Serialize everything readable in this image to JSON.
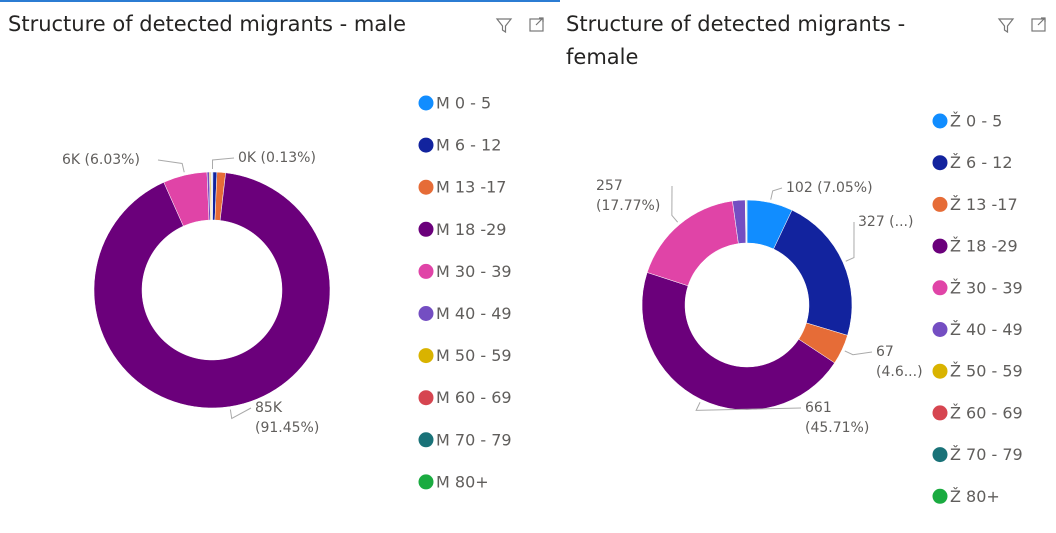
{
  "chart_data": [
    {
      "type": "donut",
      "title": "Structure of detected migrants - male",
      "categories": [
        "M 0 - 5",
        "M 6 - 12",
        "M 13 -17",
        "M 18 -29",
        "M 30 - 39",
        "M 40 - 49",
        "M 50 - 59",
        "M 60 - 69",
        "M 70 - 79",
        "M 80+"
      ],
      "values": [
        120,
        500,
        1100,
        85000,
        5600,
        300,
        150,
        100,
        50,
        27
      ],
      "value_labels": [
        "0K (0.13%)",
        null,
        null,
        "85K (91.45%)",
        "6K (6.03%)",
        null,
        null,
        null,
        null,
        null
      ],
      "colors": [
        "#118DFF",
        "#12239E",
        "#E66C37",
        "#6B007B",
        "#E044A7",
        "#744EC2",
        "#D9B300",
        "#D64550",
        "#197278",
        "#1AAB40"
      ]
    },
    {
      "type": "donut",
      "title": "Structure of detected migrants - female",
      "categories": [
        "Ž 0 - 5",
        "Ž 6 - 12",
        "Ž 13 -17",
        "Ž 18 -29",
        "Ž 30 - 39",
        "Ž 40 - 49",
        "Ž 50 - 59",
        "Ž 60 - 69",
        "Ž 70 - 79",
        "Ž 80+"
      ],
      "values": [
        102,
        327,
        67,
        661,
        257,
        28,
        1,
        1,
        1,
        1
      ],
      "value_labels": [
        "102 (7.05%)",
        "327 (...)",
        "67 (4.6...)",
        "661 (45.71%)",
        "257 (17.77%)",
        null,
        null,
        null,
        null,
        null
      ],
      "colors": [
        "#118DFF",
        "#12239E",
        "#E66C37",
        "#6B007B",
        "#E044A7",
        "#744EC2",
        "#D9B300",
        "#D64550",
        "#197278",
        "#1AAB40"
      ]
    }
  ]
}
